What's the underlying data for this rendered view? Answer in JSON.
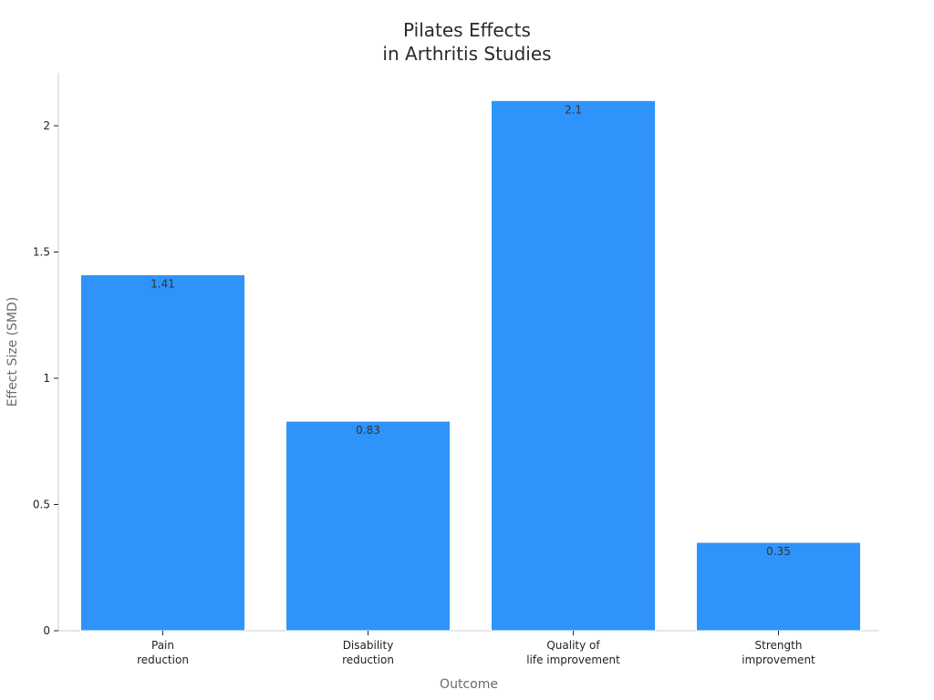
{
  "chart_data": {
    "type": "bar",
    "title_lines": [
      "Pilates Effects",
      "in Arthritis Studies"
    ],
    "xlabel": "Outcome",
    "ylabel": "Effect Size (SMD)",
    "categories": [
      [
        "Pain",
        "reduction"
      ],
      [
        "Disability",
        "reduction"
      ],
      [
        "Quality of",
        "life improvement"
      ],
      [
        "Strength",
        "improvement"
      ]
    ],
    "values": [
      1.41,
      0.83,
      2.1,
      0.35
    ],
    "value_labels": [
      "1.41",
      "0.83",
      "2.1",
      "0.35"
    ],
    "yticks": [
      0,
      0.5,
      1,
      1.5,
      2
    ],
    "ytick_labels": [
      "0",
      "0.5",
      "1",
      "1.5",
      "2"
    ],
    "ylim": [
      0,
      2.2
    ],
    "grid": false,
    "legend": "none",
    "colors": {
      "bar": "#2e93fa",
      "bar_edge": "#ffffff",
      "axis": "#cccccc"
    }
  }
}
